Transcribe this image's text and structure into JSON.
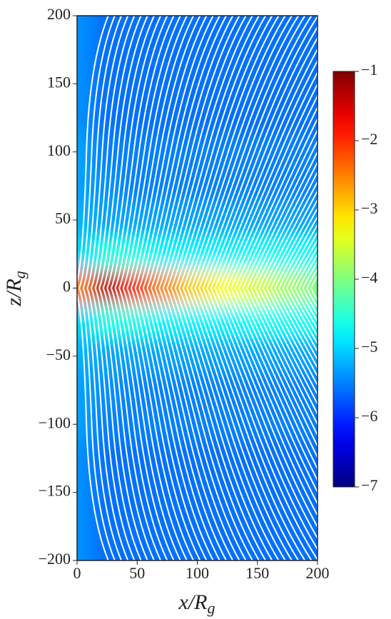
{
  "chart_data": {
    "type": "heatmap",
    "xlabel": [
      "x/R",
      "g"
    ],
    "ylabel": [
      "z/R",
      "g"
    ],
    "xlim": [
      0,
      200
    ],
    "ylim": [
      -200,
      200
    ],
    "xticks": [
      0,
      50,
      100,
      150,
      200
    ],
    "yticks": [
      {
        "value": -200,
        "label": "−200"
      },
      {
        "value": -150,
        "label": "−150"
      },
      {
        "value": -100,
        "label": "−100"
      },
      {
        "value": -50,
        "label": "−50"
      },
      0,
      50,
      100,
      150,
      200
    ],
    "colormap": "jet",
    "clim": [
      -7,
      -1
    ],
    "cticks": [
      {
        "value": -7,
        "label": "−7"
      },
      {
        "value": -6,
        "label": "−6"
      },
      {
        "value": -5,
        "label": "−5"
      },
      {
        "value": -4,
        "label": "−4"
      },
      {
        "value": -3,
        "label": "−3"
      },
      {
        "value": -2,
        "label": "−2"
      },
      {
        "value": -1,
        "label": "−1"
      }
    ],
    "x": [
      0,
      25,
      50,
      75,
      100,
      125,
      150,
      175,
      200
    ],
    "z": [
      200,
      175,
      150,
      125,
      100,
      75,
      50,
      25,
      0,
      -25,
      -50,
      -75,
      -100,
      -125,
      -150,
      -175,
      -200
    ],
    "values": [
      [
        -5.4,
        -5.6,
        -5.6,
        -5.6,
        -5.6,
        -5.6,
        -5.6,
        -5.6,
        -5.6
      ],
      [
        -5.4,
        -5.6,
        -5.6,
        -5.6,
        -5.6,
        -5.6,
        -5.6,
        -5.6,
        -5.6
      ],
      [
        -5.4,
        -5.6,
        -5.6,
        -5.6,
        -5.6,
        -5.6,
        -5.6,
        -5.6,
        -5.6
      ],
      [
        -5.4,
        -5.6,
        -5.6,
        -5.6,
        -5.6,
        -5.6,
        -5.6,
        -5.6,
        -5.6
      ],
      [
        -5.3,
        -5.5,
        -5.5,
        -5.5,
        -5.5,
        -5.5,
        -5.5,
        -5.5,
        -5.5
      ],
      [
        -5.3,
        -5.4,
        -5.5,
        -5.5,
        -5.5,
        -5.5,
        -5.5,
        -5.5,
        -5.5
      ],
      [
        -5.2,
        -5.3,
        -5.3,
        -5.3,
        -5.3,
        -5.3,
        -5.3,
        -5.3,
        -5.3
      ],
      [
        -5.0,
        -4.6,
        -4.6,
        -4.8,
        -4.8,
        -4.8,
        -4.7,
        -4.7,
        -4.7
      ],
      [
        -2.5,
        -1.4,
        -2.0,
        -2.6,
        -3.0,
        -3.3,
        -3.5,
        -3.8,
        -4.0
      ],
      [
        -5.0,
        -4.6,
        -4.6,
        -4.8,
        -4.8,
        -4.8,
        -4.7,
        -4.7,
        -4.7
      ],
      [
        -5.2,
        -5.3,
        -5.3,
        -5.3,
        -5.3,
        -5.3,
        -5.3,
        -5.3,
        -5.3
      ],
      [
        -5.3,
        -5.4,
        -5.5,
        -5.5,
        -5.5,
        -5.5,
        -5.5,
        -5.5,
        -5.5
      ],
      [
        -5.3,
        -5.5,
        -5.5,
        -5.5,
        -5.5,
        -5.5,
        -5.5,
        -5.5,
        -5.5
      ],
      [
        -5.4,
        -5.6,
        -5.6,
        -5.6,
        -5.6,
        -5.6,
        -5.6,
        -5.6,
        -5.6
      ],
      [
        -5.4,
        -5.6,
        -5.6,
        -5.6,
        -5.6,
        -5.6,
        -5.6,
        -5.6,
        -5.6
      ],
      [
        -5.4,
        -5.6,
        -5.6,
        -5.6,
        -5.6,
        -5.6,
        -5.6,
        -5.6,
        -5.6
      ],
      [
        -5.4,
        -5.6,
        -5.6,
        -5.6,
        -5.6,
        -5.6,
        -5.6,
        -5.6,
        -5.6
      ]
    ]
  }
}
